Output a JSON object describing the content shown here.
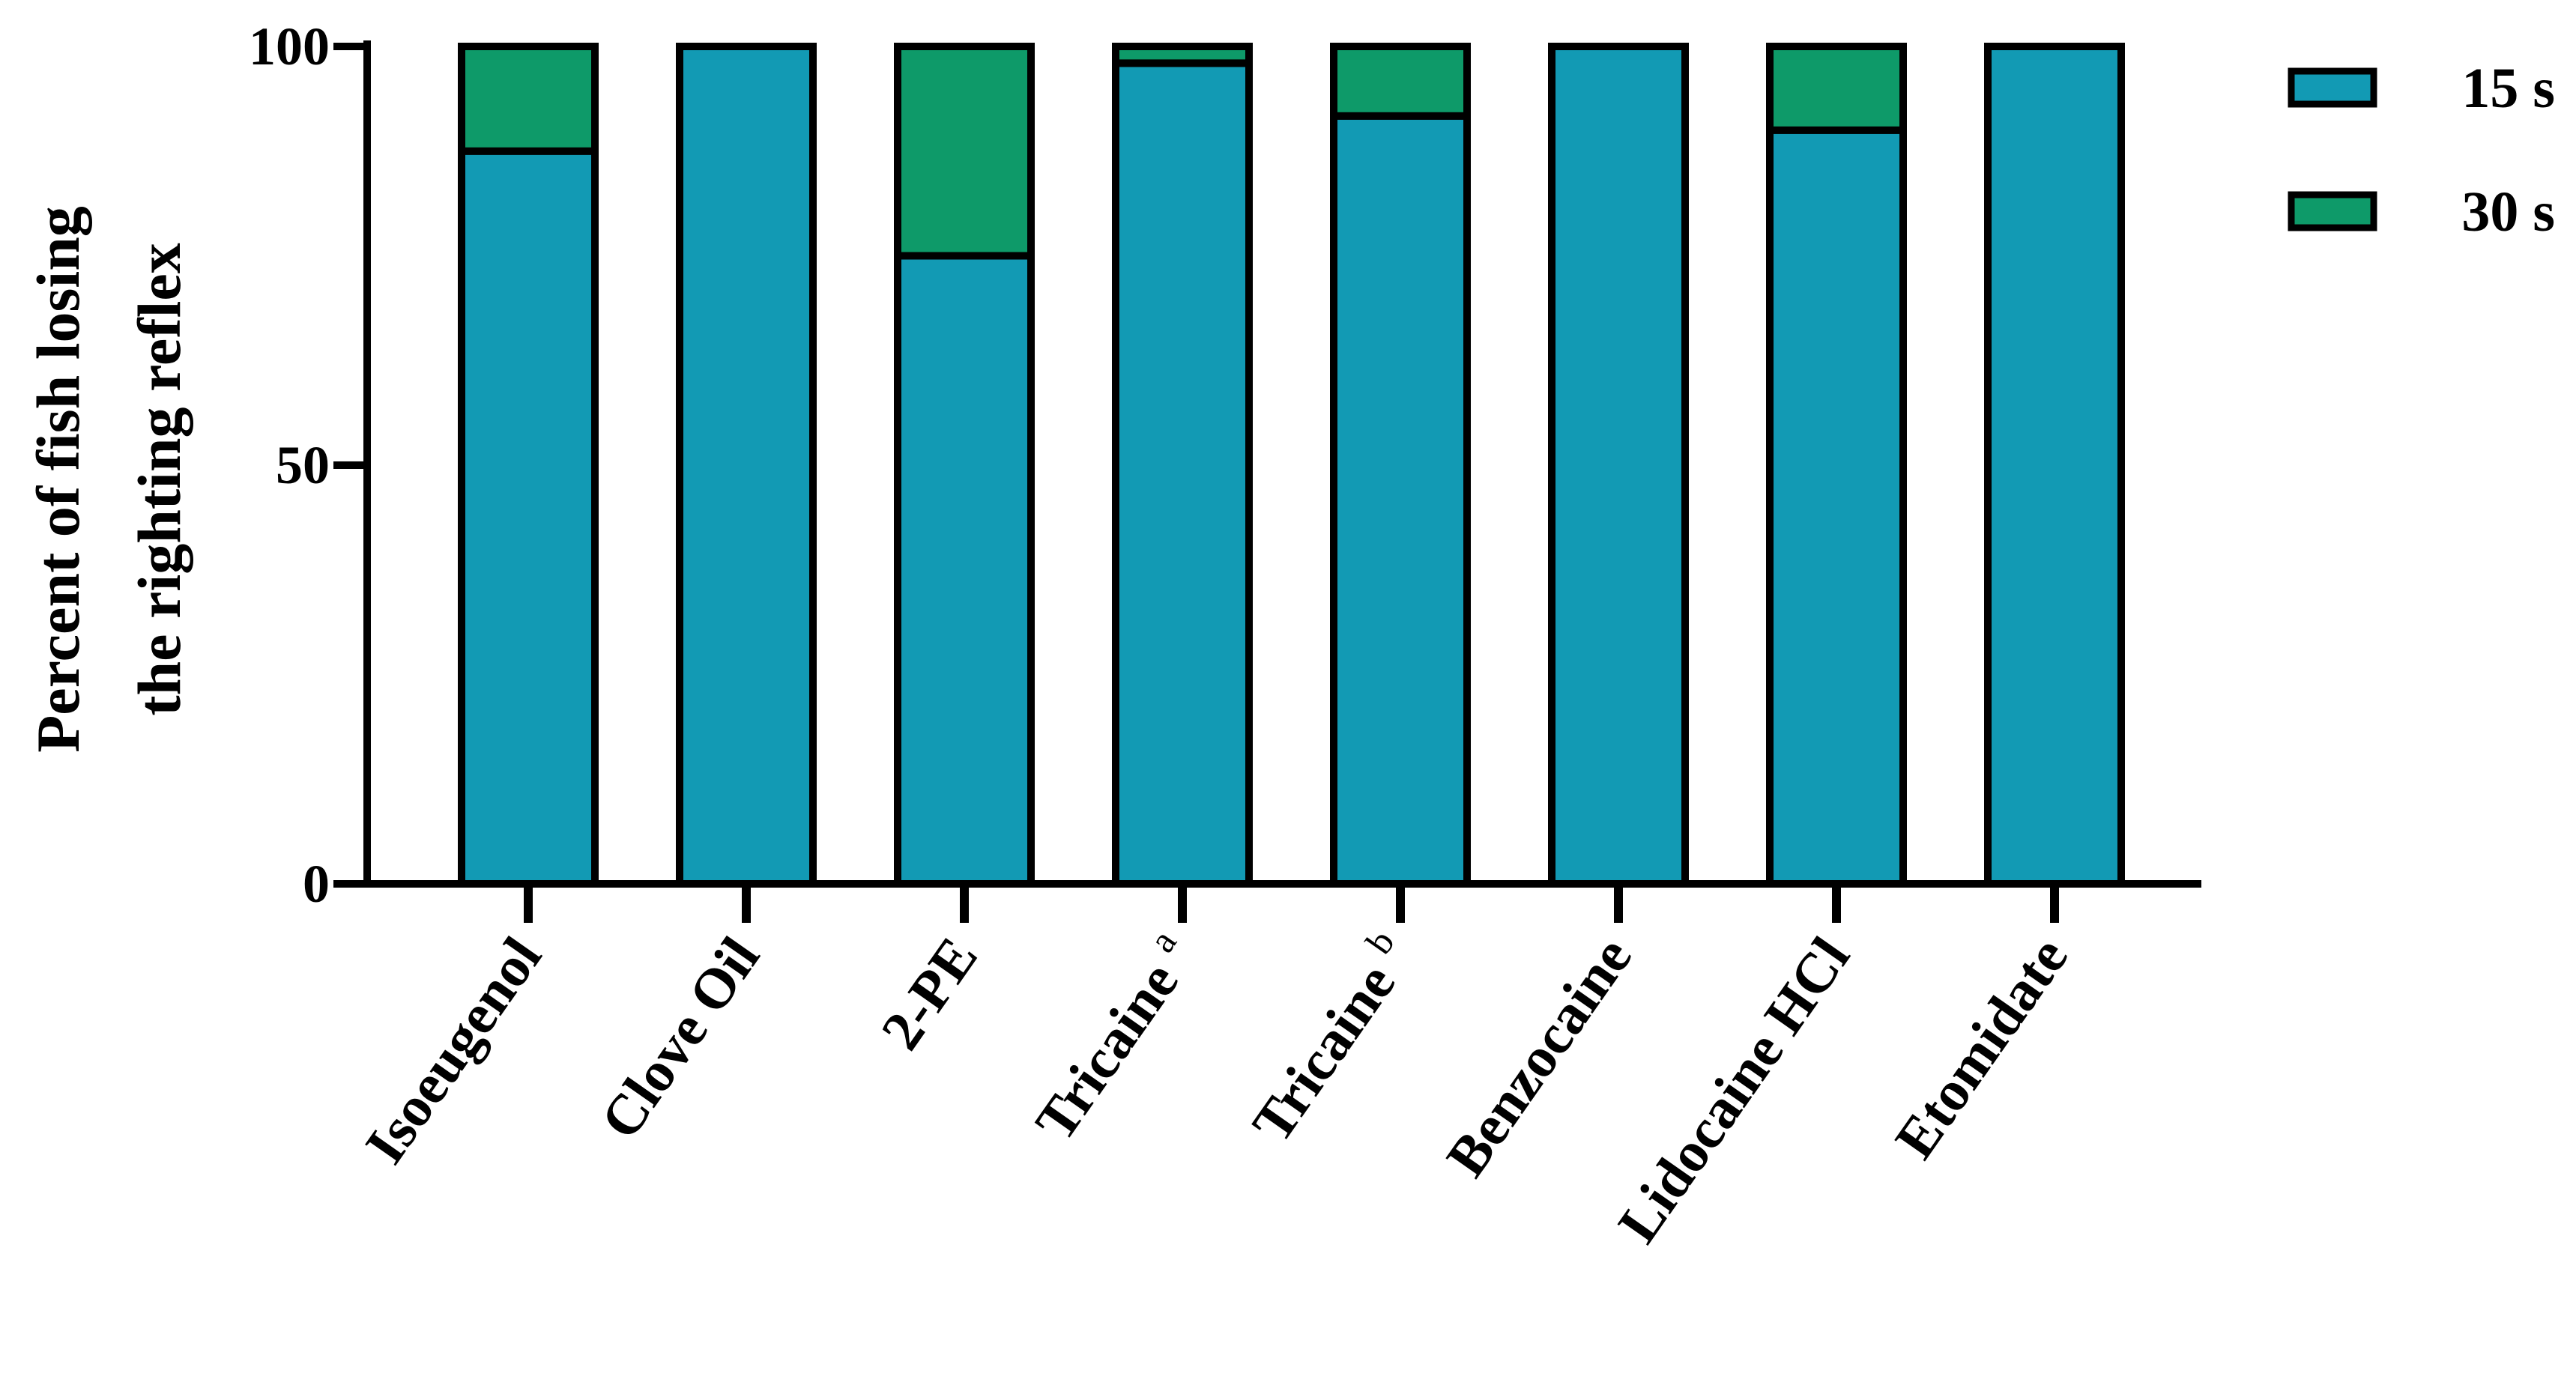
{
  "chart_data": {
    "type": "bar",
    "stacked": true,
    "title": "",
    "xlabel": "",
    "ylabel_lines": [
      "Percent of fish losing",
      "the righting reflex"
    ],
    "ylim": [
      0,
      100
    ],
    "yticks": [
      "0",
      "50",
      "100"
    ],
    "categories": [
      {
        "label": "Isoeugenol",
        "superscript": ""
      },
      {
        "label": "Clove Oil",
        "superscript": ""
      },
      {
        "label": "2-PE",
        "superscript": ""
      },
      {
        "label": "Tricaine",
        "superscript": "a"
      },
      {
        "label": "Tricaine",
        "superscript": "b"
      },
      {
        "label": "Benzocaine",
        "superscript": ""
      },
      {
        "label": "Lidocaine HCl",
        "superscript": ""
      },
      {
        "label": "Etomidate",
        "superscript": ""
      }
    ],
    "series": [
      {
        "name": "15 s",
        "color": "#129ab4",
        "values": [
          87.5,
          100,
          75,
          98,
          91.7,
          100,
          90,
          100
        ]
      },
      {
        "name": "30 s",
        "color": "#0e9a69",
        "values": [
          12.5,
          0,
          25,
          2,
          8.3,
          0,
          10,
          0
        ]
      }
    ],
    "legend_position": "top-right",
    "grid": false
  }
}
